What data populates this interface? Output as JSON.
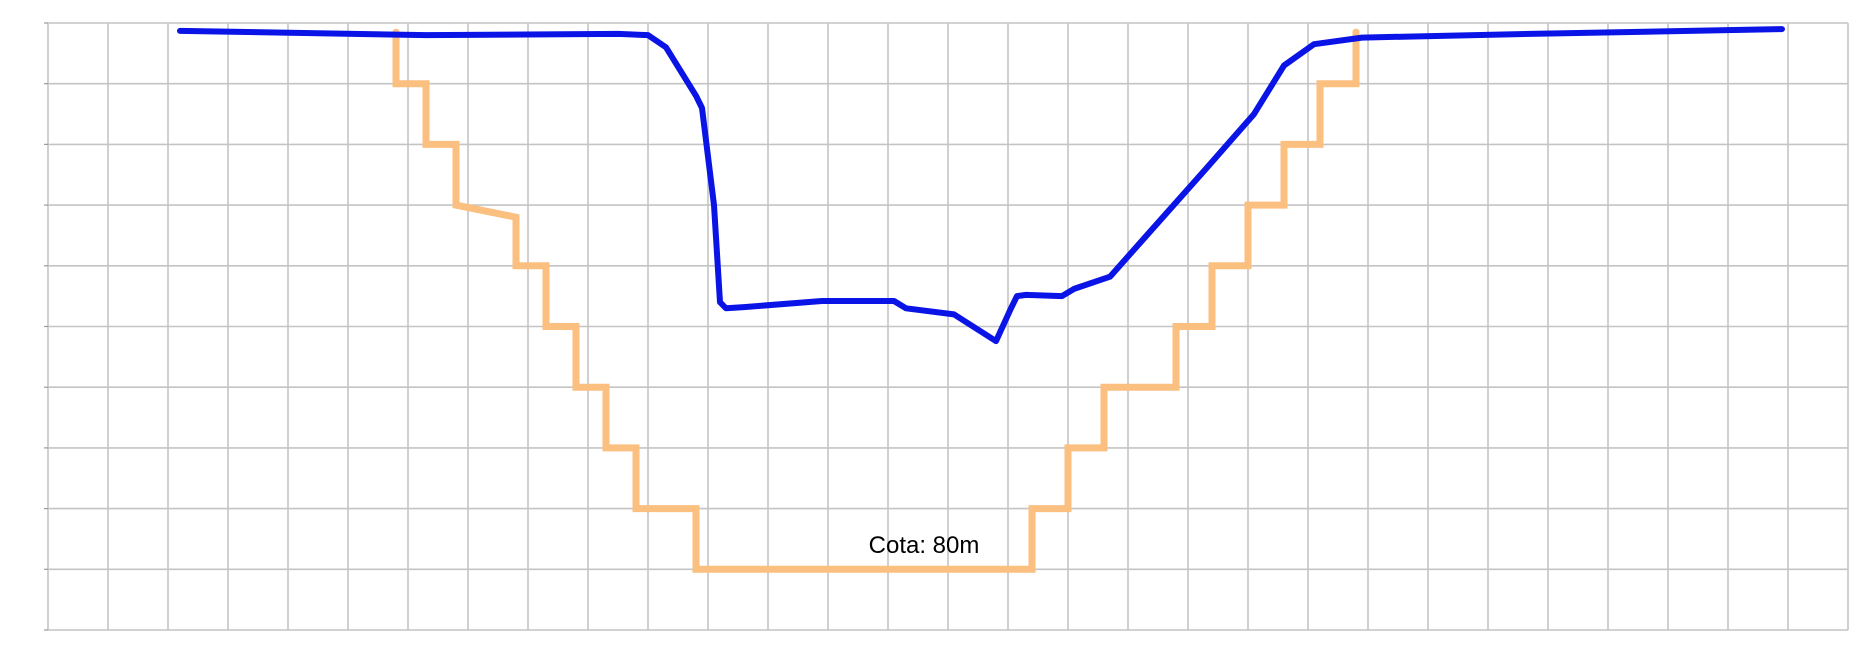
{
  "chart_data": {
    "type": "line",
    "title": "",
    "xlabel": "",
    "ylabel": "",
    "grid": true,
    "xlim": [
      0,
      30
    ],
    "ylim": [
      0,
      10
    ],
    "annotations": [
      {
        "text": "Cota: 80m",
        "x": 14.6,
        "y": 1.4
      }
    ],
    "colors": {
      "terrain": "#0a14e6",
      "excavation": "#fbbf80",
      "grid": "#c4c4c4",
      "label": "#000000"
    },
    "series": [
      {
        "name": "",
        "color": "#0a14e6",
        "points": [
          [
            2.2,
            9.87
          ],
          [
            6.3,
            9.8
          ],
          [
            9.5,
            9.82
          ],
          [
            10.0,
            9.8
          ],
          [
            10.3,
            9.6
          ],
          [
            10.8,
            8.8
          ],
          [
            10.9,
            8.6
          ],
          [
            11.1,
            7.0
          ],
          [
            11.2,
            5.4
          ],
          [
            11.3,
            5.3
          ],
          [
            11.6,
            5.32
          ],
          [
            12.9,
            5.42
          ],
          [
            14.1,
            5.42
          ],
          [
            14.3,
            5.3
          ],
          [
            15.1,
            5.2
          ],
          [
            15.8,
            4.76
          ],
          [
            16.05,
            5.3
          ],
          [
            16.15,
            5.5
          ],
          [
            16.3,
            5.52
          ],
          [
            16.9,
            5.5
          ],
          [
            17.1,
            5.62
          ],
          [
            17.7,
            5.82
          ],
          [
            19.3,
            7.6
          ],
          [
            20.1,
            8.5
          ],
          [
            20.6,
            9.3
          ],
          [
            21.1,
            9.65
          ],
          [
            21.9,
            9.76
          ],
          [
            24.7,
            9.82
          ],
          [
            28.9,
            9.9
          ]
        ]
      },
      {
        "name": "",
        "color": "#fbbf80",
        "points": [
          [
            5.8,
            9.85
          ],
          [
            5.8,
            9.0
          ],
          [
            6.3,
            9.0
          ],
          [
            6.3,
            8.0
          ],
          [
            6.8,
            8.0
          ],
          [
            6.8,
            7.0
          ],
          [
            7.8,
            6.8
          ],
          [
            7.8,
            6.0
          ],
          [
            8.3,
            6.0
          ],
          [
            8.3,
            5.0
          ],
          [
            8.8,
            5.0
          ],
          [
            8.8,
            4.0
          ],
          [
            9.3,
            4.0
          ],
          [
            9.3,
            3.0
          ],
          [
            9.8,
            3.0
          ],
          [
            9.8,
            2.0
          ],
          [
            10.8,
            2.0
          ],
          [
            10.8,
            1.0
          ],
          [
            16.4,
            1.0
          ],
          [
            16.4,
            2.0
          ],
          [
            17.0,
            2.0
          ],
          [
            17.0,
            3.0
          ],
          [
            17.6,
            3.0
          ],
          [
            17.6,
            4.0
          ],
          [
            18.8,
            4.0
          ],
          [
            18.8,
            5.0
          ],
          [
            19.4,
            5.0
          ],
          [
            19.4,
            6.0
          ],
          [
            20.0,
            6.0
          ],
          [
            20.0,
            7.0
          ],
          [
            20.6,
            7.0
          ],
          [
            20.6,
            8.0
          ],
          [
            21.2,
            8.0
          ],
          [
            21.2,
            9.0
          ],
          [
            21.8,
            9.0
          ],
          [
            21.8,
            9.85
          ]
        ]
      }
    ]
  }
}
